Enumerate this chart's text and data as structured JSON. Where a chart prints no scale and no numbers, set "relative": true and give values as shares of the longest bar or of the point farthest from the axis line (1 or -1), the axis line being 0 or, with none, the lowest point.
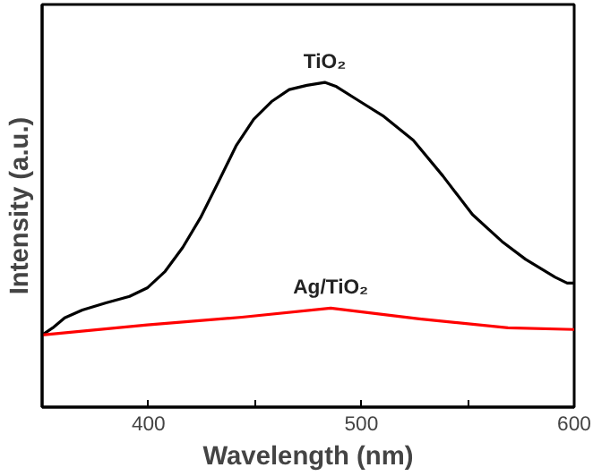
{
  "chart_data": {
    "type": "line",
    "relative": true,
    "xlabel": "Wavelength (nm)",
    "ylabel": "Intensity (a.u.)",
    "xlim": [
      350,
      600
    ],
    "xticks": [
      400,
      {
        "value": 450,
        "label": null
      },
      500,
      {
        "value": 550,
        "label": null
      },
      600
    ],
    "grid": false,
    "marker": "none",
    "line_style": "solid",
    "series": [
      {
        "name": "TiO₂",
        "color": "#000000",
        "x": [
          350,
          355,
          360.6,
          368.9,
          380,
          391.1,
          399.4,
          407.8,
          416.1,
          424.4,
          432.8,
          441.1,
          449.4,
          457.8,
          466.1,
          474.4,
          482.8,
          488.3,
          499.4,
          510.6,
          524.4,
          538.3,
          552.2,
          566.1,
          577.2,
          591.1,
          596.7,
          600
        ],
        "values": [
          0.222,
          0.244,
          0.275,
          0.299,
          0.321,
          0.341,
          0.367,
          0.418,
          0.492,
          0.583,
          0.693,
          0.804,
          0.886,
          0.941,
          0.978,
          0.991,
          1.0,
          0.987,
          0.941,
          0.895,
          0.822,
          0.712,
          0.593,
          0.51,
          0.455,
          0.4,
          0.382,
          0.382
        ]
      },
      {
        "name": "Ag/TiO₂",
        "color": "#ff0000",
        "x": [
          350,
          399.4,
          443.9,
          485.6,
          527.2,
          568.9,
          600
        ],
        "values": [
          0.222,
          0.253,
          0.277,
          0.305,
          0.272,
          0.244,
          0.239
        ]
      }
    ]
  }
}
